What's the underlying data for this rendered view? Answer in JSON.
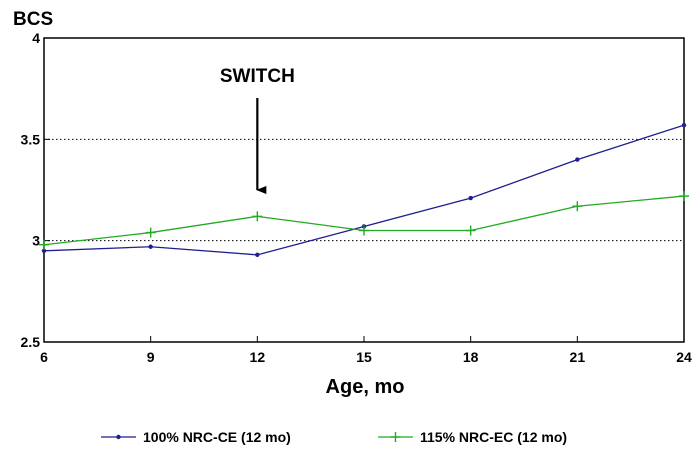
{
  "chart_data": {
    "type": "line",
    "ylabel": "BCS",
    "xlabel": "Age, mo",
    "x": [
      6,
      9,
      12,
      15,
      18,
      21,
      24
    ],
    "x_ticks": [
      "6",
      "9",
      "12",
      "15",
      "18",
      "21",
      "24"
    ],
    "y_ticks": [
      "2.5",
      "3",
      "3.5",
      "4"
    ],
    "xlim": [
      6,
      24
    ],
    "ylim": [
      2.5,
      4
    ],
    "grid": "dotted horizontal at 3 and 3.5",
    "legend_position": "bottom",
    "annotation": {
      "text": "SWITCH",
      "at_x": 12
    },
    "series": [
      {
        "name": "100% NRC-CE (12 mo)",
        "color": "#1f1f8f",
        "marker": "dot",
        "values": [
          2.95,
          2.97,
          2.93,
          3.07,
          3.21,
          3.4,
          3.57
        ]
      },
      {
        "name": "115% NRC-EC (12 mo)",
        "color": "#22aa22",
        "marker": "plus",
        "values": [
          2.98,
          3.04,
          3.12,
          3.05,
          3.05,
          3.17,
          3.22
        ]
      }
    ]
  }
}
